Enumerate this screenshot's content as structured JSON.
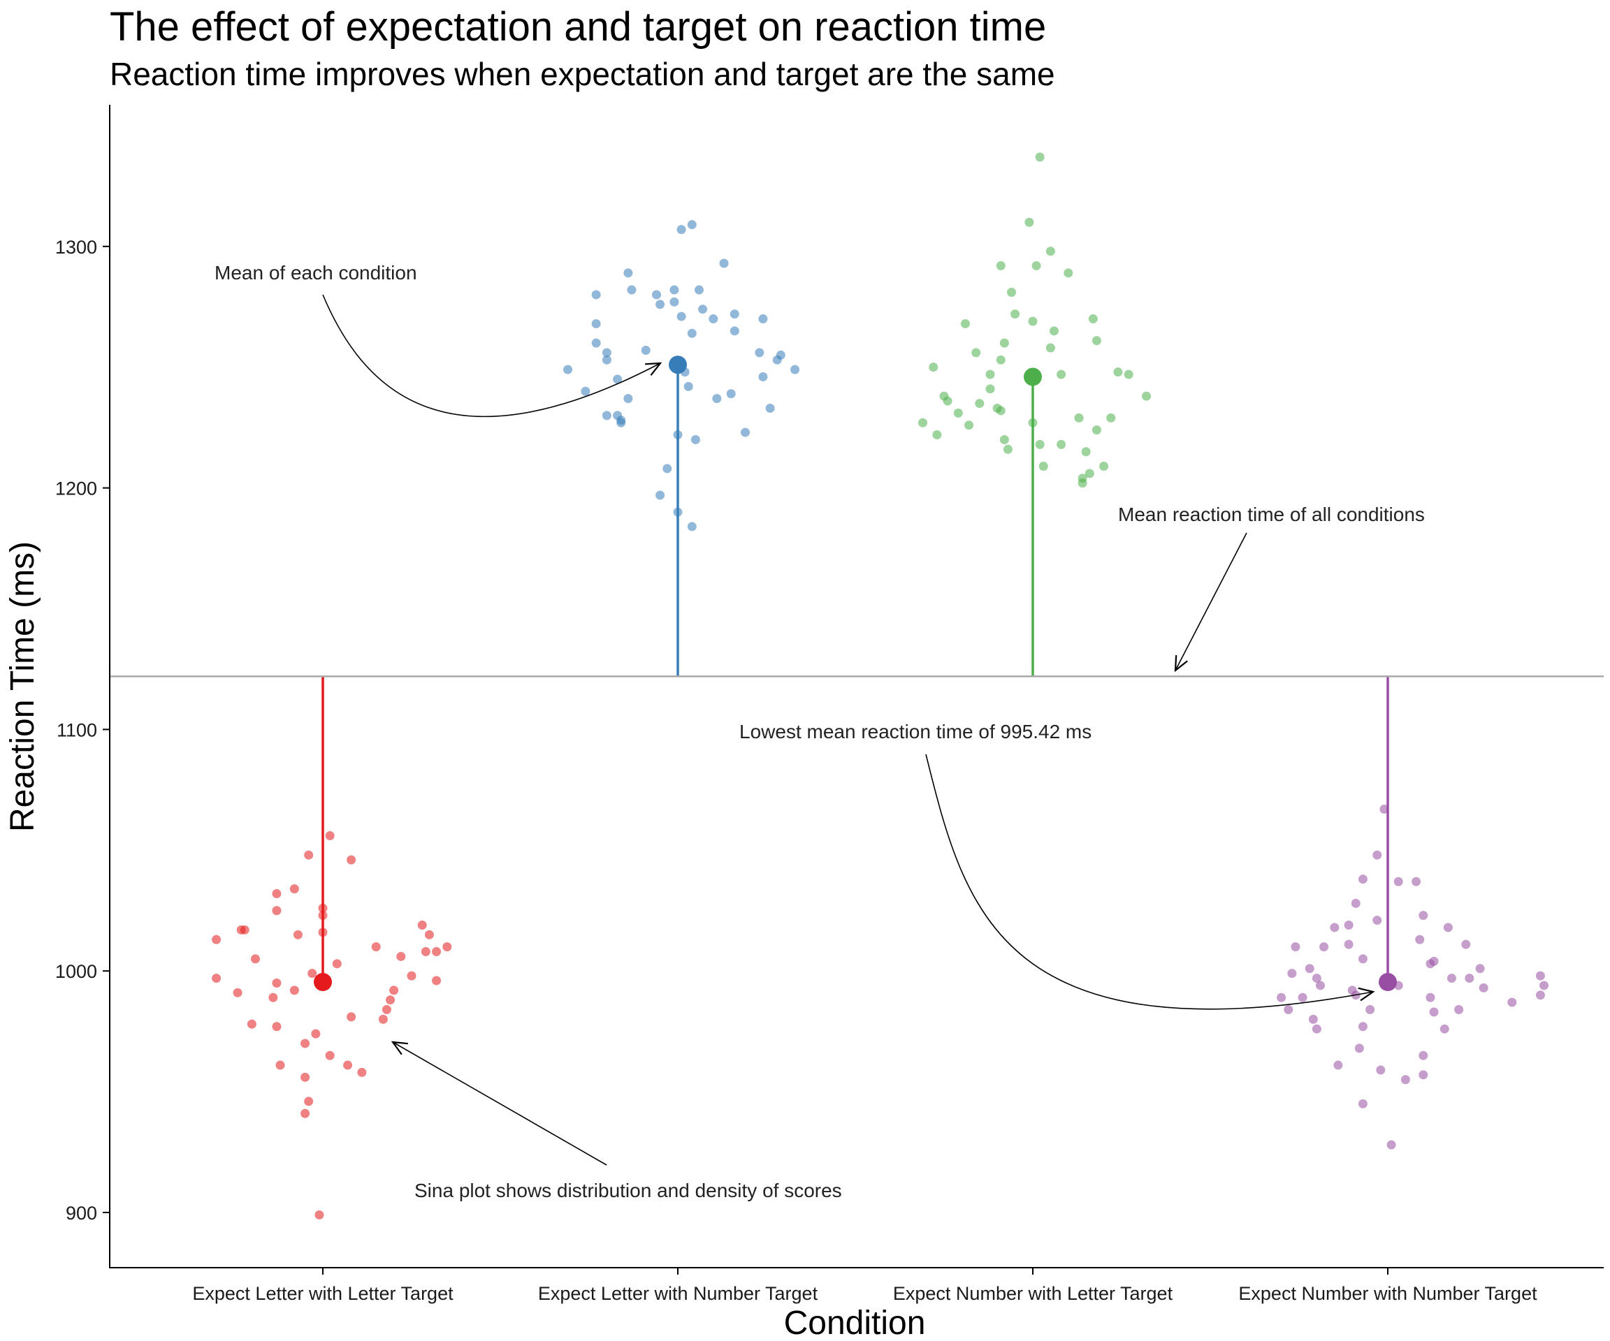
{
  "chart_data": {
    "type": "scatter",
    "title": "The effect of expectation and target on reaction time",
    "subtitle": "Reaction time improves when expectation and target are the same",
    "xlabel": "Condition",
    "ylabel": "Reaction Time (ms)",
    "ylim": [
      878,
      1358
    ],
    "yticks": [
      900,
      1000,
      1100,
      1200,
      1300
    ],
    "grid": false,
    "legend": "none",
    "categories": [
      "Expect Letter with Letter Target",
      "Expect Letter with Number Target",
      "Expect Number with Letter Target",
      "Expect Number with Number Target"
    ],
    "grand_mean": 1122,
    "series": [
      {
        "color": "#E41A1C",
        "mean": 995.42,
        "points": [
          [
            -0.3,
            1013
          ],
          [
            -0.3,
            997
          ],
          [
            -0.22,
            1017
          ],
          [
            -0.23,
            1017
          ],
          [
            -0.24,
            991
          ],
          [
            -0.2,
            978
          ],
          [
            -0.19,
            1005
          ],
          [
            -0.14,
            989
          ],
          [
            -0.13,
            977
          ],
          [
            -0.13,
            995
          ],
          [
            -0.12,
            961
          ],
          [
            -0.13,
            1032
          ],
          [
            -0.13,
            1025
          ],
          [
            -0.08,
            992
          ],
          [
            -0.08,
            1034
          ],
          [
            -0.07,
            1015
          ],
          [
            -0.05,
            970
          ],
          [
            -0.05,
            956
          ],
          [
            -0.04,
            946
          ],
          [
            -0.05,
            941
          ],
          [
            -0.04,
            1048
          ],
          [
            -0.03,
            999
          ],
          [
            -0.02,
            974
          ],
          [
            -0.01,
            899
          ],
          [
            0,
            1026
          ],
          [
            0,
            1023
          ],
          [
            0,
            1016
          ],
          [
            0.02,
            1056
          ],
          [
            0.02,
            965
          ],
          [
            0.04,
            1003
          ],
          [
            0.07,
            961
          ],
          [
            0.08,
            981
          ],
          [
            0.08,
            1046
          ],
          [
            0.11,
            958
          ],
          [
            0.15,
            1010
          ],
          [
            0.17,
            980
          ],
          [
            0.18,
            984
          ],
          [
            0.19,
            988
          ],
          [
            0.2,
            992
          ],
          [
            0.22,
            1006
          ],
          [
            0.25,
            998
          ],
          [
            0.28,
            1019
          ],
          [
            0.29,
            1008
          ],
          [
            0.3,
            1015
          ],
          [
            0.32,
            996
          ],
          [
            0.32,
            1008
          ],
          [
            0.35,
            1010
          ]
        ]
      },
      {
        "color": "#377EB8",
        "mean": 1251,
        "points": [
          [
            -0.31,
            1249
          ],
          [
            -0.26,
            1240
          ],
          [
            -0.23,
            1280
          ],
          [
            -0.23,
            1268
          ],
          [
            -0.23,
            1260
          ],
          [
            -0.2,
            1230
          ],
          [
            -0.2,
            1256
          ],
          [
            -0.2,
            1253
          ],
          [
            -0.17,
            1245
          ],
          [
            -0.17,
            1230
          ],
          [
            -0.16,
            1228
          ],
          [
            -0.16,
            1227
          ],
          [
            -0.14,
            1237
          ],
          [
            -0.14,
            1289
          ],
          [
            -0.13,
            1282
          ],
          [
            -0.09,
            1257
          ],
          [
            -0.06,
            1280
          ],
          [
            -0.05,
            1276
          ],
          [
            -0.05,
            1197
          ],
          [
            -0.03,
            1208
          ],
          [
            -0.01,
            1282
          ],
          [
            -0.01,
            1277
          ],
          [
            0,
            1222
          ],
          [
            0,
            1190
          ],
          [
            0.01,
            1307
          ],
          [
            0.01,
            1271
          ],
          [
            0.02,
            1248
          ],
          [
            0.03,
            1242
          ],
          [
            0.04,
            1309
          ],
          [
            0.04,
            1264
          ],
          [
            0.04,
            1184
          ],
          [
            0.05,
            1220
          ],
          [
            0.06,
            1282
          ],
          [
            0.07,
            1274
          ],
          [
            0.1,
            1270
          ],
          [
            0.11,
            1237
          ],
          [
            0.13,
            1293
          ],
          [
            0.15,
            1239
          ],
          [
            0.16,
            1272
          ],
          [
            0.16,
            1265
          ],
          [
            0.19,
            1223
          ],
          [
            0.23,
            1256
          ],
          [
            0.24,
            1246
          ],
          [
            0.24,
            1270
          ],
          [
            0.26,
            1233
          ],
          [
            0.28,
            1253
          ],
          [
            0.29,
            1255
          ],
          [
            0.33,
            1249
          ]
        ]
      },
      {
        "color": "#4DAF4A",
        "mean": 1246,
        "points": [
          [
            -0.31,
            1227
          ],
          [
            -0.28,
            1250
          ],
          [
            -0.27,
            1222
          ],
          [
            -0.25,
            1238
          ],
          [
            -0.24,
            1236
          ],
          [
            -0.21,
            1231
          ],
          [
            -0.19,
            1268
          ],
          [
            -0.18,
            1226
          ],
          [
            -0.16,
            1256
          ],
          [
            -0.15,
            1235
          ],
          [
            -0.12,
            1247
          ],
          [
            -0.12,
            1241
          ],
          [
            -0.1,
            1233
          ],
          [
            -0.09,
            1292
          ],
          [
            -0.09,
            1253
          ],
          [
            -0.09,
            1232
          ],
          [
            -0.08,
            1260
          ],
          [
            -0.08,
            1220
          ],
          [
            -0.07,
            1216
          ],
          [
            -0.06,
            1281
          ],
          [
            -0.05,
            1272
          ],
          [
            -0.01,
            1310
          ],
          [
            0,
            1269
          ],
          [
            0,
            1227
          ],
          [
            0.01,
            1292
          ],
          [
            0.02,
            1218
          ],
          [
            0.03,
            1209
          ],
          [
            0.05,
            1298
          ],
          [
            0.05,
            1258
          ],
          [
            0.06,
            1265
          ],
          [
            0.08,
            1247
          ],
          [
            0.08,
            1218
          ],
          [
            0.1,
            1289
          ],
          [
            0.13,
            1229
          ],
          [
            0.14,
            1204
          ],
          [
            0.14,
            1202
          ],
          [
            0.15,
            1215
          ],
          [
            0.16,
            1206
          ],
          [
            0.17,
            1270
          ],
          [
            0.18,
            1261
          ],
          [
            0.18,
            1224
          ],
          [
            0.2,
            1209
          ],
          [
            0.22,
            1229
          ],
          [
            0.24,
            1248
          ],
          [
            0.27,
            1247
          ],
          [
            0.32,
            1238
          ],
          [
            0.02,
            1337
          ]
        ]
      },
      {
        "color": "#984EA3",
        "mean": 995.42,
        "points": [
          [
            -0.3,
            989
          ],
          [
            -0.28,
            984
          ],
          [
            -0.26,
            1010
          ],
          [
            -0.27,
            999
          ],
          [
            -0.24,
            989
          ],
          [
            -0.22,
            1001
          ],
          [
            -0.21,
            980
          ],
          [
            -0.2,
            976
          ],
          [
            -0.2,
            997
          ],
          [
            -0.19,
            994
          ],
          [
            -0.18,
            1010
          ],
          [
            -0.15,
            1018
          ],
          [
            -0.14,
            961
          ],
          [
            -0.11,
            1019
          ],
          [
            -0.11,
            1011
          ],
          [
            -0.1,
            992
          ],
          [
            -0.09,
            1028
          ],
          [
            -0.09,
            990
          ],
          [
            -0.07,
            1038
          ],
          [
            -0.07,
            1005
          ],
          [
            -0.07,
            977
          ],
          [
            -0.08,
            968
          ],
          [
            -0.07,
            945
          ],
          [
            -0.05,
            984
          ],
          [
            -0.03,
            1048
          ],
          [
            -0.03,
            1021
          ],
          [
            -0.02,
            959
          ],
          [
            -0.01,
            1067
          ],
          [
            0.01,
            928
          ],
          [
            0.03,
            994
          ],
          [
            0.03,
            1037
          ],
          [
            0.05,
            955
          ],
          [
            0.08,
            1037
          ],
          [
            0.09,
            1013
          ],
          [
            0.1,
            965
          ],
          [
            0.1,
            957
          ],
          [
            0.1,
            1023
          ],
          [
            0.12,
            1003
          ],
          [
            0.13,
            1004
          ],
          [
            0.12,
            989
          ],
          [
            0.13,
            983
          ],
          [
            0.16,
            976
          ],
          [
            0.17,
            1018
          ],
          [
            0.18,
            997
          ],
          [
            0.2,
            984
          ],
          [
            0.22,
            1011
          ],
          [
            0.23,
            997
          ],
          [
            0.27,
            993
          ],
          [
            0.26,
            1001
          ],
          [
            0.35,
            987
          ],
          [
            0.43,
            990
          ],
          [
            0.43,
            998
          ],
          [
            0.44,
            994
          ]
        ]
      }
    ],
    "annotations": [
      "Mean of each condition",
      "Mean reaction time of all conditions",
      "Lowest mean reaction time of 995.42 ms",
      "Sina plot shows distribution and density of scores"
    ]
  }
}
